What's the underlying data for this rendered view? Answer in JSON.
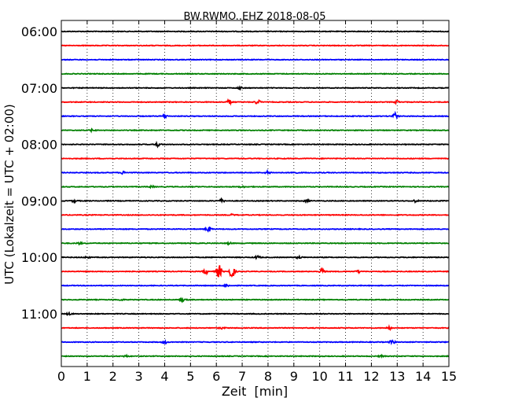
{
  "chart_data": {
    "type": "line",
    "title": "BW.RWMO..EHZ 2018-08-05",
    "xlabel": "Zeit  [min]",
    "ylabel": "UTC (Lokalzeit = UTC + 02:00)",
    "xlim": [
      0,
      15
    ],
    "x_ticks": [
      0,
      1,
      2,
      3,
      4,
      5,
      6,
      7,
      8,
      9,
      10,
      11,
      12,
      13,
      14,
      15
    ],
    "y_tick_labels": [
      "06:00",
      "07:00",
      "08:00",
      "09:00",
      "10:00",
      "11:00"
    ],
    "trace_interval_minutes": 15,
    "grid": "vertical dotted",
    "colors": [
      "#000000",
      "#ff0000",
      "#0000ff",
      "#008000"
    ],
    "traces": [
      {
        "start": "06:00",
        "color": "#000000",
        "events": []
      },
      {
        "start": "06:15",
        "color": "#ff0000",
        "events": []
      },
      {
        "start": "06:30",
        "color": "#0000ff",
        "events": []
      },
      {
        "start": "06:45",
        "color": "#008000",
        "events": []
      },
      {
        "start": "07:00",
        "color": "#000000",
        "events": [
          {
            "t": 6.9,
            "amp": 0.15
          }
        ]
      },
      {
        "start": "07:15",
        "color": "#ff0000",
        "events": [
          {
            "t": 6.5,
            "amp": 0.3
          },
          {
            "t": 7.6,
            "amp": 0.3
          },
          {
            "t": 13.0,
            "amp": 0.2
          }
        ]
      },
      {
        "start": "07:30",
        "color": "#0000ff",
        "events": [
          {
            "t": 4.0,
            "amp": 0.2
          },
          {
            "t": 12.9,
            "amp": 0.45
          }
        ]
      },
      {
        "start": "07:45",
        "color": "#008000",
        "events": [
          {
            "t": 1.2,
            "amp": 0.15
          }
        ]
      },
      {
        "start": "08:00",
        "color": "#000000",
        "events": [
          {
            "t": 3.7,
            "amp": 0.3
          }
        ]
      },
      {
        "start": "08:15",
        "color": "#ff0000",
        "events": []
      },
      {
        "start": "08:30",
        "color": "#0000ff",
        "events": [
          {
            "t": 2.4,
            "amp": 0.2
          },
          {
            "t": 8.0,
            "amp": 0.2
          },
          {
            "t": 9.0,
            "amp": 0.15
          }
        ]
      },
      {
        "start": "08:45",
        "color": "#008000",
        "events": [
          {
            "t": 3.5,
            "amp": 0.12
          },
          {
            "t": 7.0,
            "amp": 0.12
          }
        ]
      },
      {
        "start": "09:00",
        "color": "#000000",
        "events": [
          {
            "t": 0.5,
            "amp": 0.15
          },
          {
            "t": 6.2,
            "amp": 0.2
          },
          {
            "t": 9.5,
            "amp": 0.15
          },
          {
            "t": 13.7,
            "amp": 0.15
          }
        ]
      },
      {
        "start": "09:15",
        "color": "#ff0000",
        "events": [
          {
            "t": 6.6,
            "amp": 0.1
          }
        ]
      },
      {
        "start": "09:30",
        "color": "#0000ff",
        "events": [
          {
            "t": 5.7,
            "amp": 0.35
          }
        ]
      },
      {
        "start": "09:45",
        "color": "#008000",
        "events": [
          {
            "t": 0.7,
            "amp": 0.12
          },
          {
            "t": 6.5,
            "amp": 0.12
          }
        ]
      },
      {
        "start": "10:00",
        "color": "#000000",
        "events": [
          {
            "t": 1.0,
            "amp": 0.12
          },
          {
            "t": 7.6,
            "amp": 0.2
          },
          {
            "t": 9.2,
            "amp": 0.15
          }
        ]
      },
      {
        "start": "10:15",
        "color": "#ff0000",
        "events": [
          {
            "t": 6.1,
            "amp": 0.9
          },
          {
            "t": 6.6,
            "amp": 0.9
          },
          {
            "t": 5.6,
            "amp": 0.3
          },
          {
            "t": 10.1,
            "amp": 0.4
          },
          {
            "t": 11.5,
            "amp": 0.15
          }
        ]
      },
      {
        "start": "10:30",
        "color": "#0000ff",
        "events": [
          {
            "t": 6.4,
            "amp": 0.15
          }
        ]
      },
      {
        "start": "10:45",
        "color": "#008000",
        "events": [
          {
            "t": 4.7,
            "amp": 0.2
          },
          {
            "t": 2.3,
            "amp": 0.1
          }
        ]
      },
      {
        "start": "11:00",
        "color": "#000000",
        "events": [
          {
            "t": 0.3,
            "amp": 0.15
          }
        ]
      },
      {
        "start": "11:15",
        "color": "#ff0000",
        "events": [
          {
            "t": 6.2,
            "amp": 0.12
          },
          {
            "t": 12.7,
            "amp": 0.2
          }
        ]
      },
      {
        "start": "11:30",
        "color": "#0000ff",
        "events": [
          {
            "t": 4.0,
            "amp": 0.2
          },
          {
            "t": 12.8,
            "amp": 0.25
          }
        ]
      },
      {
        "start": "11:45",
        "color": "#008000",
        "events": [
          {
            "t": 2.5,
            "amp": 0.12
          },
          {
            "t": 12.4,
            "amp": 0.15
          }
        ]
      }
    ]
  }
}
